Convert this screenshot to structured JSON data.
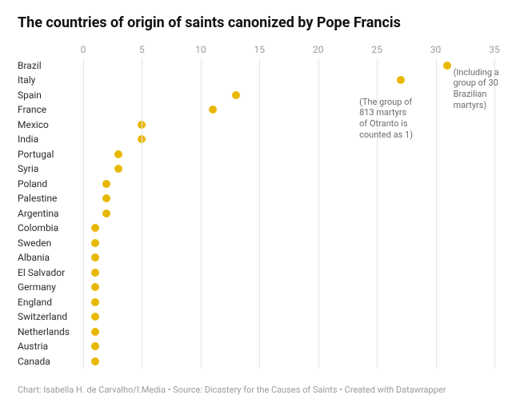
{
  "chart": {
    "type": "dot-plot",
    "title": "The countries of origin of saints canonized by Pope Francis",
    "title_fontsize": 18,
    "label_fontsize": 12,
    "tick_fontsize": 12,
    "credit_fontsize": 11,
    "background_color": "#ffffff",
    "grid_color": "#e4e4e4",
    "tick_color": "#9a9a9a",
    "label_color": "#2b2b2b",
    "title_color": "#111111",
    "dot_color": "#e8b800",
    "dot_size": 10,
    "xlim": [
      0,
      35
    ],
    "xtick_step": 5,
    "xticks": [
      0,
      5,
      10,
      15,
      20,
      25,
      30,
      35
    ],
    "plot_left_label_width": 82,
    "row_height": 18.5,
    "rows": [
      {
        "country": "Brazil",
        "value": 31
      },
      {
        "country": "Italy",
        "value": 27
      },
      {
        "country": "Spain",
        "value": 13
      },
      {
        "country": "France",
        "value": 11
      },
      {
        "country": "Mexico",
        "value": 5
      },
      {
        "country": "India",
        "value": 5
      },
      {
        "country": "Portugal",
        "value": 3
      },
      {
        "country": "Syria",
        "value": 3
      },
      {
        "country": "Poland",
        "value": 2
      },
      {
        "country": "Palestine",
        "value": 2
      },
      {
        "country": "Argentina",
        "value": 2
      },
      {
        "country": "Colombia",
        "value": 1
      },
      {
        "country": "Sweden",
        "value": 1
      },
      {
        "country": "Albania",
        "value": 1
      },
      {
        "country": "El Salvador",
        "value": 1
      },
      {
        "country": "Germany",
        "value": 1
      },
      {
        "country": "England",
        "value": 1
      },
      {
        "country": "Switzerland",
        "value": 1
      },
      {
        "country": "Netherlands",
        "value": 1
      },
      {
        "country": "Austria",
        "value": 1
      },
      {
        "country": "Canada",
        "value": 1
      }
    ],
    "annotations": [
      {
        "lines": [
          "(The group of",
          "813 martyrs",
          "of Otranto is",
          "counted as 1)"
        ],
        "anchor_row": 2,
        "anchor_value": 23.5,
        "color": "#6b6b6b"
      },
      {
        "lines": [
          "(Including a",
          "group of 30",
          "Brazilian",
          "martyrs)"
        ],
        "anchor_row": 0,
        "anchor_value": 31.5,
        "color": "#6b6b6b"
      }
    ],
    "credit": "Chart: Isabella H. de Carvalho/I.Media • Source: Dicastery for the Causes of Saints • Created with Datawrapper"
  }
}
